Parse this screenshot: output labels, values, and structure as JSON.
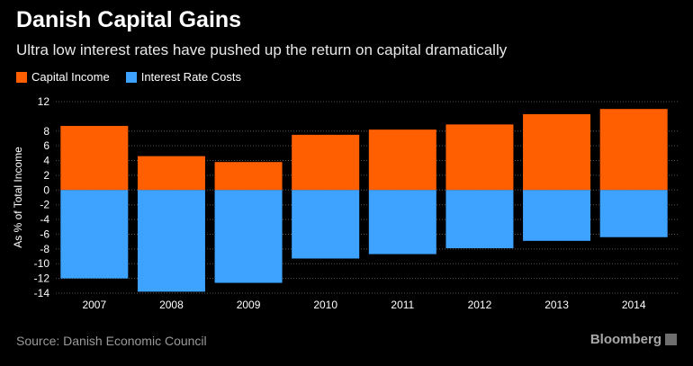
{
  "title": "Danish Capital Gains",
  "subtitle": "Ultra low interest rates have pushed up the return on capital dramatically",
  "source": "Source: Danish Economic Council",
  "brand": "Bloomberg",
  "colors": {
    "capital_income": "#ff5f00",
    "interest_rate_costs": "#3ea2ff",
    "grid": "#555555",
    "background": "#000000"
  },
  "chart_data": {
    "type": "bar",
    "stacked": true,
    "categories": [
      "2007",
      "2008",
      "2009",
      "2010",
      "2011",
      "2012",
      "2013",
      "2014"
    ],
    "series": [
      {
        "name": "Capital Income",
        "values": [
          8.7,
          4.6,
          3.8,
          7.5,
          8.2,
          8.9,
          10.3,
          11.0
        ]
      },
      {
        "name": "Interest Rate Costs",
        "values": [
          -12.0,
          -13.8,
          -12.6,
          -9.3,
          -8.7,
          -7.9,
          -6.9,
          -6.4
        ]
      }
    ],
    "ylabel": "As % of Total Income",
    "ylim": [
      -14,
      12
    ],
    "yticks": [
      -14,
      -12,
      -10,
      -8,
      -6,
      -4,
      -2,
      0,
      2,
      4,
      6,
      8,
      12
    ],
    "grid": true,
    "legend": "top-left"
  }
}
